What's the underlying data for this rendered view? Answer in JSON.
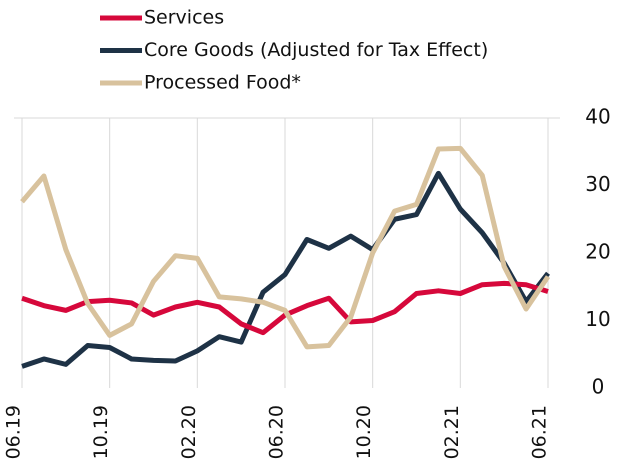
{
  "chart_data": {
    "type": "line",
    "categories": [
      "06.19",
      null,
      null,
      null,
      "10.19",
      null,
      null,
      null,
      "02.20",
      null,
      null,
      null,
      "06.20",
      null,
      null,
      null,
      "10.20",
      null,
      null,
      null,
      "02.21",
      null,
      null,
      null,
      "06.21"
    ],
    "series": [
      {
        "name": "Services",
        "color": "#d6083b",
        "values": [
          13.3,
          12.2,
          11.5,
          12.8,
          13.0,
          12.6,
          10.8,
          12.0,
          12.7,
          12.0,
          9.5,
          8.2,
          10.8,
          12.2,
          13.3,
          9.8,
          10.0,
          11.3,
          14.0,
          14.4,
          14.0,
          15.3,
          15.5,
          15.3,
          14.3
        ]
      },
      {
        "name": "Core Goods (Adjusted for Tax Effect)",
        "color": "#1e3246",
        "values": [
          3.2,
          4.3,
          3.5,
          6.3,
          6.0,
          4.3,
          4.1,
          4.0,
          5.5,
          7.6,
          6.8,
          14.2,
          16.8,
          22.0,
          20.7,
          22.5,
          20.5,
          25.0,
          25.7,
          31.8,
          26.5,
          23.0,
          18.5,
          12.8,
          17.0
        ]
      },
      {
        "name": "Processed Food*",
        "color": "#d8c29d",
        "values": [
          27.6,
          31.4,
          20.5,
          12.5,
          7.8,
          9.5,
          15.8,
          19.6,
          19.2,
          13.5,
          13.2,
          12.7,
          11.5,
          6.1,
          6.3,
          10.5,
          20.0,
          26.2,
          27.2,
          35.4,
          35.5,
          31.5,
          18.0,
          11.7,
          16.5
        ]
      }
    ],
    "ylim": [
      0,
      40
    ],
    "yticks": [
      0,
      10,
      20,
      30,
      40
    ],
    "grid": true
  }
}
